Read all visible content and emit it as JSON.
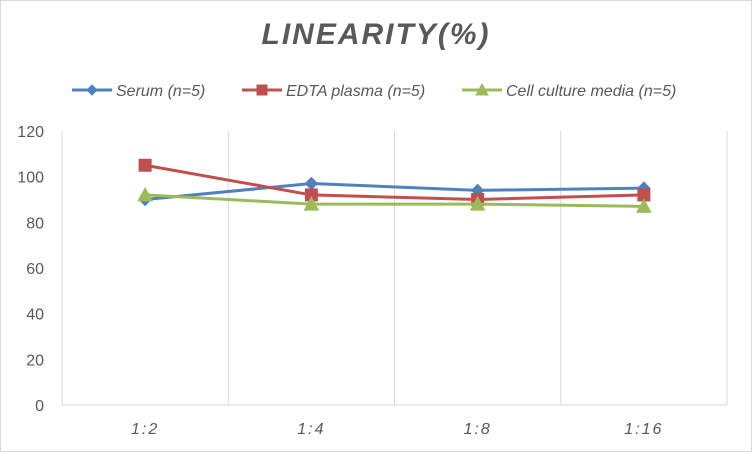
{
  "chart_data": {
    "type": "line",
    "title": "LINEARITY(%)",
    "categories": [
      "1:2",
      "1:4",
      "1:8",
      "1:16"
    ],
    "ylim": [
      0,
      120
    ],
    "yticks": [
      0,
      20,
      40,
      60,
      80,
      100,
      120
    ],
    "grid": "vertical lines between categories",
    "legend_position": "top",
    "series": [
      {
        "name": "Serum (n=5)",
        "color": "#4f81bd",
        "marker": "diamond",
        "values": [
          90,
          97,
          94,
          95
        ]
      },
      {
        "name": "EDTA plasma (n=5)",
        "color": "#c0504d",
        "marker": "square",
        "values": [
          105,
          92,
          90,
          92
        ]
      },
      {
        "name": "Cell culture media (n=5)",
        "color": "#9bbb59",
        "marker": "triangle",
        "values": [
          92,
          88,
          88,
          87
        ]
      }
    ]
  }
}
